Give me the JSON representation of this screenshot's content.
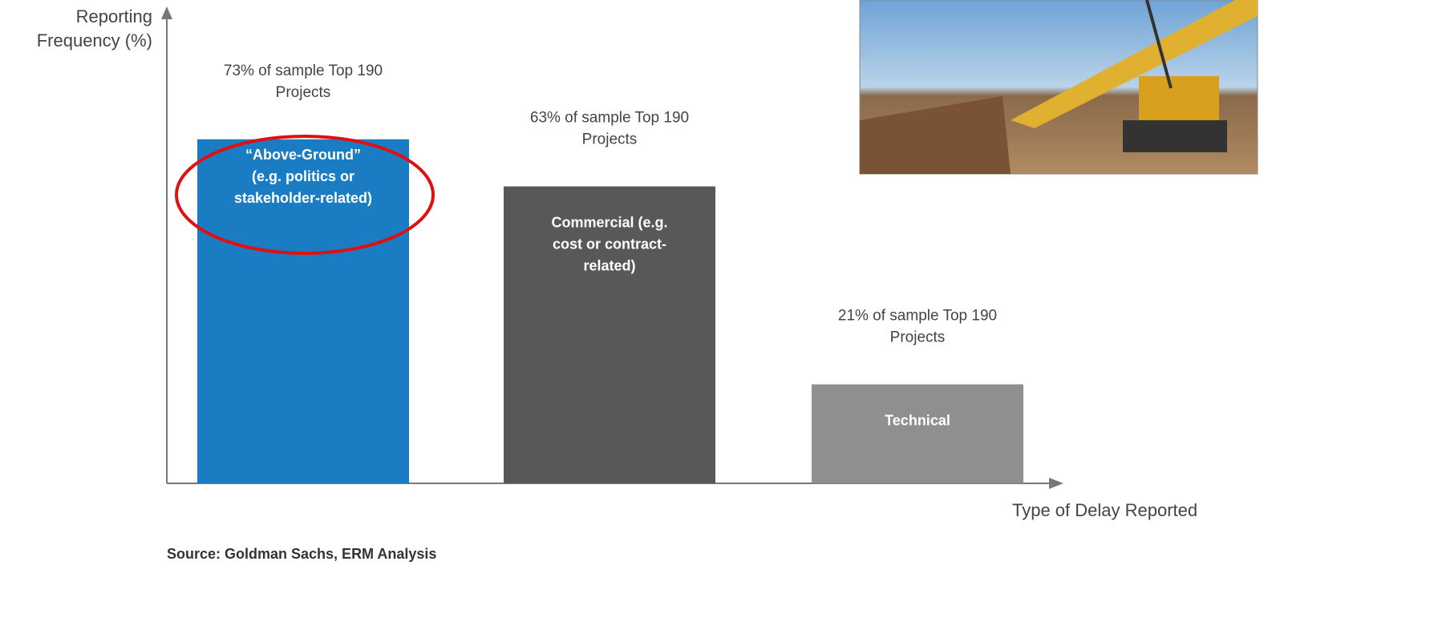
{
  "chart_data": {
    "type": "bar",
    "y_label": "Reporting\nFrequency (%)",
    "x_label": "Type of Delay Reported",
    "source": "Source: Goldman Sachs, ERM Analysis",
    "categories": [
      "“Above-Ground”\n(e.g. politics or\nstakeholder-related)",
      "Commercial (e.g.\ncost or contract-\nrelated)",
      "Technical"
    ],
    "values": [
      73,
      63,
      21
    ],
    "value_labels": [
      "73% of sample Top 190\nProjects",
      "63% of sample Top 190\nProjects",
      "21% of sample Top 190\nProjects"
    ],
    "colors": [
      "#1a7dc4",
      "#58585a",
      "#8f8f91"
    ],
    "ylim": [
      0,
      100
    ]
  }
}
